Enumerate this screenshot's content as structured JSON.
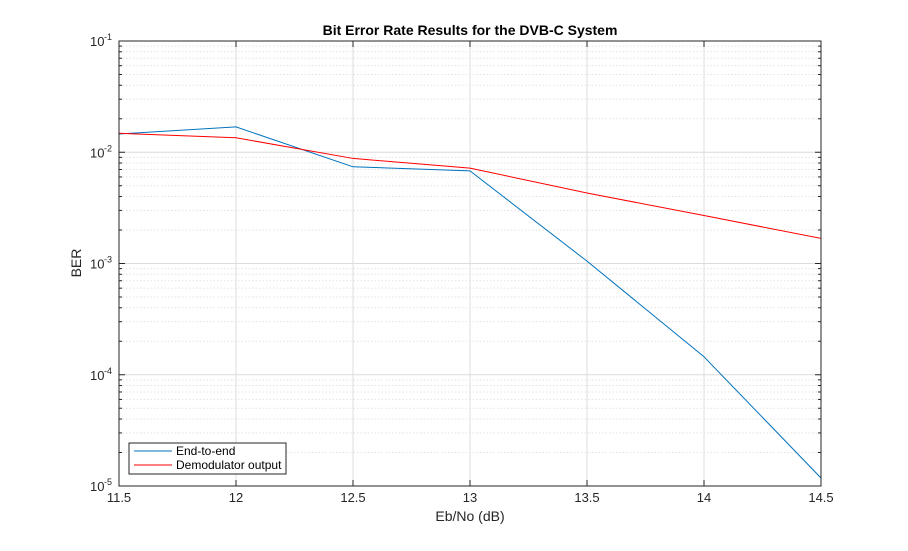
{
  "chart_data": {
    "type": "line",
    "title": "Bit Error Rate Results for the DVB-C System",
    "xlabel": "Eb/No (dB)",
    "ylabel": "BER",
    "xlim": [
      11.5,
      14.5
    ],
    "ylim": [
      1e-05,
      0.1
    ],
    "yscale": "log",
    "grid": true,
    "minor_grid": true,
    "legend_position": "bottom-left",
    "x_ticks": [
      "11.5",
      "12",
      "12.5",
      "13",
      "13.5",
      "14",
      "14.5"
    ],
    "x_tick_values": [
      11.5,
      12,
      12.5,
      13,
      13.5,
      14,
      14.5
    ],
    "y_ticks": [
      {
        "base": "10",
        "exp": "-1",
        "value": 0.1
      },
      {
        "base": "10",
        "exp": "-2",
        "value": 0.01
      },
      {
        "base": "10",
        "exp": "-3",
        "value": 0.001
      },
      {
        "base": "10",
        "exp": "-4",
        "value": 0.0001
      },
      {
        "base": "10",
        "exp": "-5",
        "value": 1e-05
      }
    ],
    "x": [
      11.5,
      12,
      12.5,
      13,
      13.5,
      14,
      14.5
    ],
    "series": [
      {
        "name": "End-to-end",
        "color": "#0072BD",
        "values": [
          0.0146,
          0.0169,
          0.0074,
          0.0068,
          0.00105,
          0.000145,
          1.18e-05
        ]
      },
      {
        "name": "Demodulator output",
        "color": "#FF0000",
        "values": [
          0.0148,
          0.0135,
          0.0088,
          0.0072,
          0.0043,
          0.0027,
          0.00168
        ]
      }
    ]
  }
}
